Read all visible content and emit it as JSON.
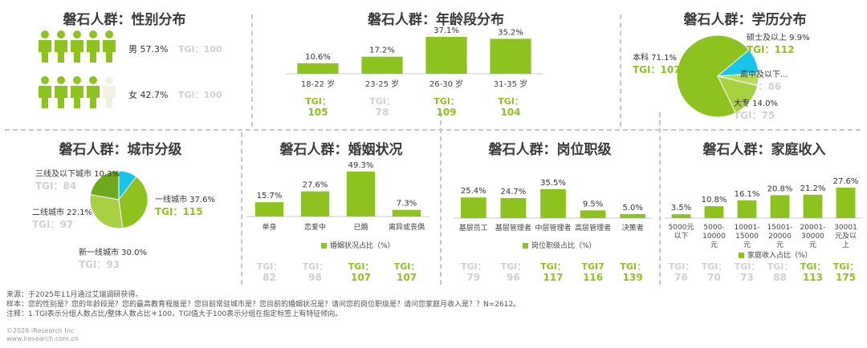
{
  "colors": {
    "green": "#8dc21f",
    "cyan": "#18c5e8",
    "grey": "#d0d0d0",
    "faint": "#f1f1e2"
  },
  "gender": {
    "title": "磐石人群：性别分布",
    "rows": [
      {
        "label": "男 57.3%",
        "tgi": "TGI：100",
        "share": 57.3,
        "filled_icons": 6
      },
      {
        "label": "女 42.7%",
        "tgi": "TGI：100",
        "share": 42.7,
        "filled_icons": 4
      }
    ]
  },
  "age": {
    "title": "磐石人群：年龄段分布",
    "chart_data": {
      "type": "bar",
      "categories": [
        "18-22 岁",
        "23-25 岁",
        "26-30 岁",
        "31-35 岁"
      ],
      "values": [
        10.6,
        17.2,
        37.1,
        35.2
      ],
      "value_labels": [
        "10.6%",
        "17.2%",
        "37.1%",
        "35.2%"
      ],
      "tgi": [
        {
          "label": "TGI：",
          "value": "105",
          "highlight": true
        },
        {
          "label": "TGI：",
          "value": "78",
          "highlight": false
        },
        {
          "label": "TGI：",
          "value": "109",
          "highlight": true
        },
        {
          "label": "TGI：",
          "value": "104",
          "highlight": true
        }
      ]
    }
  },
  "edu": {
    "title": "磐石人群：学历分布",
    "chart_data": {
      "type": "pie",
      "slices": [
        {
          "name": "本科",
          "value": 71.1,
          "label": "本科 71.1%",
          "tgi": "TGI：107",
          "color": "#8dc21f",
          "highlight": true
        },
        {
          "name": "硕士及以上",
          "value": 9.9,
          "label": "硕士及以上 9.9%",
          "tgi": "TGI：112",
          "color": "#18c5e8",
          "highlight": true
        },
        {
          "name": "高中及以下",
          "value": 5.0,
          "label": "高中及以下...",
          "tgi": "TGI：86",
          "color": "#b7db5a",
          "highlight": false
        },
        {
          "name": "大专",
          "value": 14.0,
          "label": "大专 14.0%",
          "tgi": "TGI：75",
          "color": "#a6d140",
          "highlight": false
        }
      ]
    }
  },
  "city": {
    "title": "磐石人群：城市分级",
    "chart_data": {
      "type": "pie",
      "slices": [
        {
          "name": "一线城市",
          "value": 37.6,
          "label": "一线城市 37.6%",
          "tgi": "TGI：115",
          "color": "#8dc21f",
          "highlight": true
        },
        {
          "name": "新一线城市",
          "value": 30.0,
          "label": "新一线城市 30.0%",
          "tgi": "TGI：93",
          "color": "#a9d045",
          "highlight": false
        },
        {
          "name": "二线城市",
          "value": 22.1,
          "label": "二线城市 22.1%",
          "tgi": "TGI：97",
          "color": "#6fa81c",
          "highlight": false
        },
        {
          "name": "三线及以下城市",
          "value": 10.3,
          "label": "三线及以下城市 10.3%",
          "tgi": "TGI：84",
          "color": "#18c5e8",
          "highlight": false
        }
      ]
    }
  },
  "marital": {
    "title": "磐石人群：婚姻状况",
    "legend": "婚姻状况占比（%）",
    "chart_data": {
      "type": "bar",
      "categories": [
        "单身",
        "恋爱中",
        "已婚",
        "离异或丧偶"
      ],
      "values": [
        15.7,
        27.6,
        49.3,
        7.3
      ],
      "value_labels": [
        "15.7%",
        "27.6%",
        "49.3%",
        "7.3%"
      ],
      "tgi": [
        {
          "label": "TGI：",
          "value": "82",
          "highlight": false
        },
        {
          "label": "TGI：",
          "value": "98",
          "highlight": false
        },
        {
          "label": "TGI：",
          "value": "107",
          "highlight": true
        },
        {
          "label": "TGI：",
          "value": "107",
          "highlight": true
        }
      ]
    }
  },
  "job": {
    "title": "磐石人群：岗位职级",
    "legend": "岗位职级占比（%）",
    "chart_data": {
      "type": "bar",
      "categories": [
        "基层员工",
        "基层管理者",
        "中层管理者",
        "高层管理者",
        "决策者"
      ],
      "values": [
        25.4,
        24.7,
        35.5,
        9.5,
        5.0
      ],
      "value_labels": [
        "25.4%",
        "24.7%",
        "35.5%",
        "9.5%",
        "5.0%"
      ],
      "tgi": [
        {
          "label": "TGI：",
          "value": "79",
          "highlight": false
        },
        {
          "label": "TGI：",
          "value": "96",
          "highlight": false
        },
        {
          "label": "TGI：",
          "value": "117",
          "highlight": true
        },
        {
          "label": "TGI7",
          "value": "116",
          "highlight": true
        },
        {
          "label": "TGI：",
          "value": "139",
          "highlight": true
        }
      ]
    }
  },
  "income": {
    "title": "磐石人群：家庭收入",
    "legend": "家庭收入占比（%）",
    "chart_data": {
      "type": "bar",
      "categories": [
        [
          "5000元",
          "以下"
        ],
        [
          "5000-",
          "10000",
          "元"
        ],
        [
          "10001-",
          "15000",
          "元"
        ],
        [
          "15001-",
          "20000",
          "元"
        ],
        [
          "20001-",
          "30000",
          "元"
        ],
        [
          "30001",
          "元及以",
          "上"
        ]
      ],
      "values": [
        3.5,
        10.8,
        16.1,
        20.8,
        21.2,
        27.6
      ],
      "value_labels": [
        "3.5%",
        "10.8%",
        "16.1%",
        "20.8%",
        "21.2%",
        "27.6%"
      ],
      "tgi": [
        {
          "label": "TGI：",
          "value": "76",
          "highlight": false
        },
        {
          "label": "TGI：",
          "value": "70",
          "highlight": false
        },
        {
          "label": "TGI：",
          "value": "73",
          "highlight": false
        },
        {
          "label": "TGI：",
          "value": "88",
          "highlight": false
        },
        {
          "label": "TGI：",
          "value": "113",
          "highlight": true
        },
        {
          "label": "TGI：",
          "value": "175",
          "highlight": true
        }
      ]
    }
  },
  "footer": {
    "source": "来源：于2025年11月通过艾瑞调研获得。",
    "sample": "样本：您的性别是？您的年龄段是？您的最高教育程度是？您目前常驻城市是？您目前的婚姻状况是？请问您的岗位职级是？请问您家庭月收入是？？N=2612。",
    "note": "注释：1.TGI表示分组人数占比/整体人数占比＊100，TGI值大于100表示分组在指定标签上有特征倾向。",
    "copyright": "©2026 iResearch Inc",
    "site": "www.iresearch.com.cn"
  }
}
